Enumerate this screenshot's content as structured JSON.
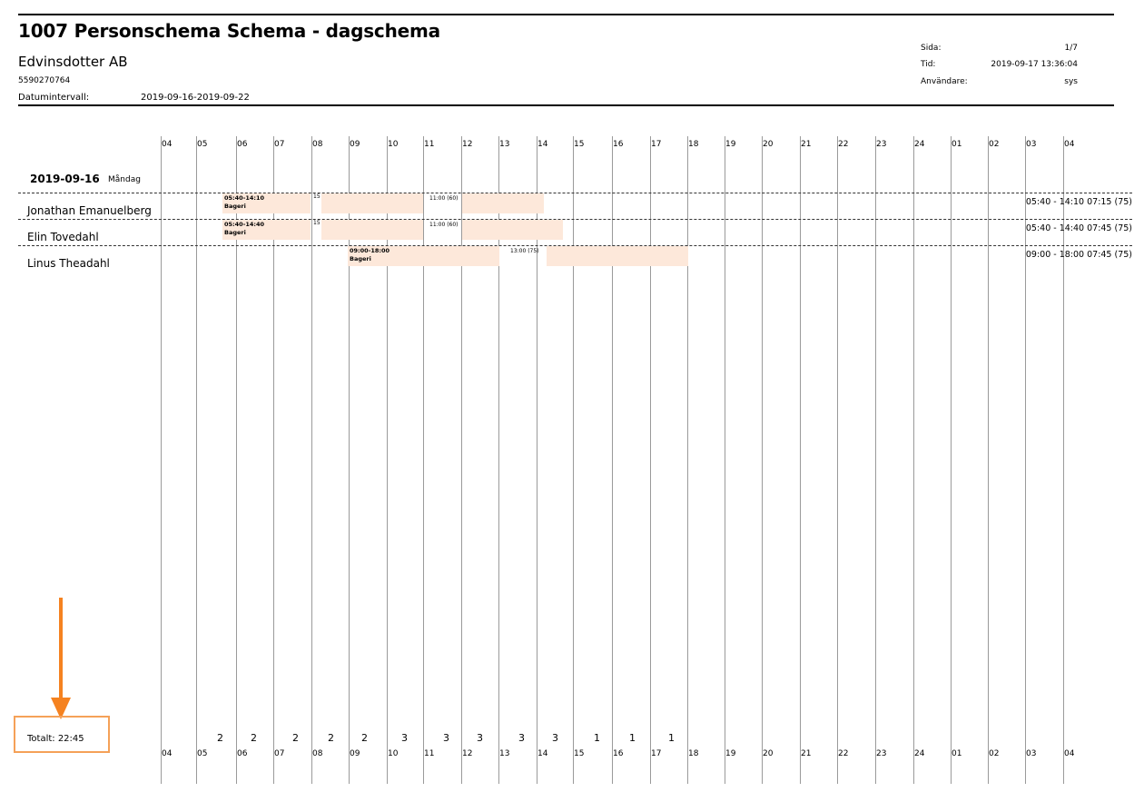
{
  "header": {
    "title": "1007 Personschema Schema - dagschema",
    "company": "Edvinsdotter AB",
    "org_number": "5590270764",
    "date_range_label": "Datumintervall:",
    "date_range_value": "2019-09-16-2019-09-22",
    "meta": [
      {
        "label": "Sida:",
        "value": "1/7"
      },
      {
        "label": "Tid:",
        "value": "2019-09-17 13:36:04"
      },
      {
        "label": "Användare:",
        "value": "sys"
      }
    ]
  },
  "hours": [
    "04",
    "05",
    "06",
    "07",
    "08",
    "09",
    "10",
    "11",
    "12",
    "13",
    "14",
    "15",
    "16",
    "17",
    "18",
    "19",
    "20",
    "21",
    "22",
    "23",
    "24",
    "01",
    "02",
    "03",
    "04"
  ],
  "day": {
    "date": "2019-09-16",
    "weekday": "Måndag"
  },
  "persons": [
    {
      "name": "Jonathan Emanuelberg",
      "shift_label": "05:40-14:10",
      "department": "Bageri",
      "break_short": "15",
      "break_long": "11:00 (60)",
      "summary": "05:40 - 14:10 07:15 (75)"
    },
    {
      "name": "Elin Tovedahl",
      "shift_label": "05:40-14:40",
      "department": "Bageri",
      "break_short": "15",
      "break_long": "11:00 (60)",
      "summary": "05:40 - 14:40 07:45 (75)"
    },
    {
      "name": "Linus Theadahl",
      "shift_label": "09:00-18:00",
      "department": "Bageri",
      "break_short": "",
      "break_long": "13:00 (75)",
      "summary": "09:00 - 18:00 07:45 (75)"
    }
  ],
  "staff_counts": [
    "2",
    "2",
    "2",
    "2",
    "2",
    "3",
    "3",
    "3",
    "3",
    "3",
    "1",
    "1",
    "1"
  ],
  "total": "Totalt: 22:45",
  "colors": {
    "shift_fill": "#fde8da",
    "highlight": "#f5a158",
    "arrow": "#f58220"
  }
}
